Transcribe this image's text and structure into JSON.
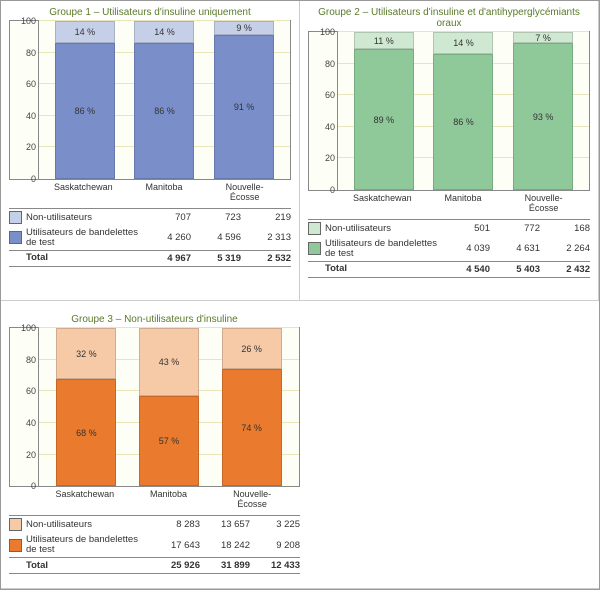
{
  "chart_common": {
    "ylim": [
      0,
      100
    ],
    "ytick_step": 20,
    "yticks": [
      0,
      20,
      40,
      60,
      80,
      100
    ],
    "background_color": "#fdfef5",
    "grid_color": "#e8e6b8",
    "categories": [
      "Saskatchewan",
      "Manitoba",
      "Nouvelle-Écosse"
    ],
    "row_labels": {
      "non_users": "Non-utilisateurs",
      "users": "Utilisateurs de bandelettes de test",
      "total": "Total"
    },
    "type": "stacked_bar_pct"
  },
  "panels": [
    {
      "id": "g1",
      "title": "Groupe 1 – Utilisateurs d'insuline uniquement",
      "colors": {
        "users": "#7a8fc9",
        "non_users": "#c6cfe8"
      },
      "bars": [
        {
          "users_pct": 86,
          "non_users_pct": 14,
          "users_label": "86 %",
          "non_users_label": "14 %"
        },
        {
          "users_pct": 86,
          "non_users_pct": 14,
          "users_label": "86 %",
          "non_users_label": "14 %"
        },
        {
          "users_pct": 91,
          "non_users_pct": 9,
          "users_label": "91 %",
          "non_users_label": "9 %"
        }
      ],
      "table": {
        "non_users": [
          "707",
          "723",
          "219"
        ],
        "users": [
          "4 260",
          "4 596",
          "2 313"
        ],
        "total": [
          "4 967",
          "5 319",
          "2 532"
        ]
      }
    },
    {
      "id": "g2",
      "title": "Groupe 2 – Utilisateurs d'insuline et d'antihyperglycémiants oraux",
      "colors": {
        "users": "#8fc99a",
        "non_users": "#cfe8d2"
      },
      "bars": [
        {
          "users_pct": 89,
          "non_users_pct": 11,
          "users_label": "89 %",
          "non_users_label": "11 %"
        },
        {
          "users_pct": 86,
          "non_users_pct": 14,
          "users_label": "86 %",
          "non_users_label": "14 %"
        },
        {
          "users_pct": 93,
          "non_users_pct": 7,
          "users_label": "93 %",
          "non_users_label": "7 %"
        }
      ],
      "table": {
        "non_users": [
          "501",
          "772",
          "168"
        ],
        "users": [
          "4 039",
          "4 631",
          "2 264"
        ],
        "total": [
          "4 540",
          "5 403",
          "2 432"
        ]
      }
    },
    {
      "id": "g3",
      "title": "Groupe 3 – Non-utilisateurs d'insuline",
      "colors": {
        "users": "#ea7a2e",
        "non_users": "#f6c9a7"
      },
      "bars": [
        {
          "users_pct": 68,
          "non_users_pct": 32,
          "users_label": "68 %",
          "non_users_label": "32 %"
        },
        {
          "users_pct": 57,
          "non_users_pct": 43,
          "users_label": "57 %",
          "non_users_label": "43 %"
        },
        {
          "users_pct": 74,
          "non_users_pct": 26,
          "users_label": "74 %",
          "non_users_label": "26 %"
        }
      ],
      "table": {
        "non_users": [
          "8 283",
          "13 657",
          "3 225"
        ],
        "users": [
          "17 643",
          "18 242",
          "9 208"
        ],
        "total": [
          "25 926",
          "31 899",
          "12 433"
        ]
      }
    }
  ]
}
